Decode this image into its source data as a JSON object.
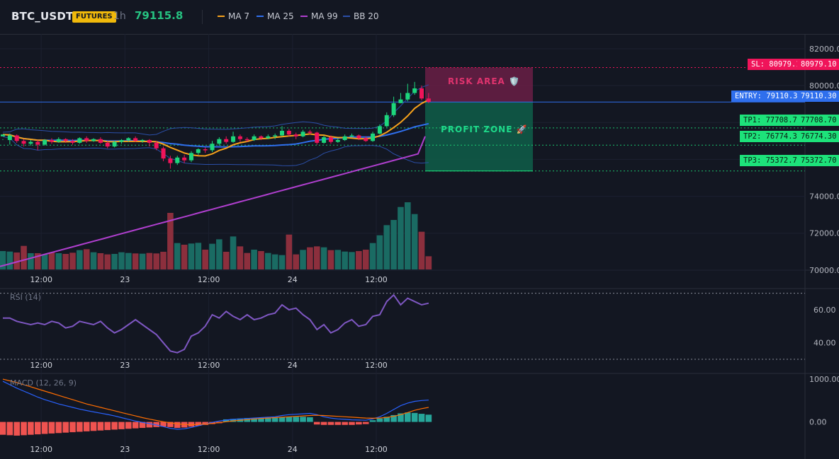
{
  "header": {
    "symbol": "BTC_USDT",
    "badge": "FUTURES",
    "interval": "1h",
    "last_price": "79115.8",
    "indicators": [
      {
        "label": "MA 7",
        "color": "#f7a21b"
      },
      {
        "label": "MA 25",
        "color": "#2f6fed"
      },
      {
        "label": "MA 99",
        "color": "#b03fcf"
      },
      {
        "label": "BB 20",
        "color": "#2b4fa8"
      }
    ]
  },
  "levels": {
    "sl": {
      "tag": "SL: 80979.1",
      "axis": "80979.10",
      "value": 80979.1,
      "color": "#f0145a"
    },
    "entry": {
      "tag": "ENTRY: 79110.3",
      "axis": "79110.30",
      "value": 79110.3,
      "color": "#2f6fed"
    },
    "tps": [
      {
        "tag": "TP1: 77708.7",
        "axis": "77708.70",
        "value": 77708.7,
        "color": "#1de27a"
      },
      {
        "tag": "TP2: 76774.3",
        "axis": "76774.30",
        "value": 76774.3,
        "color": "#1de27a"
      },
      {
        "tag": "TP3: 75372.7",
        "axis": "75372.70",
        "value": 75372.7,
        "color": "#1de27a"
      }
    ]
  },
  "zones": {
    "risk_label": "RISK AREA 🛡️",
    "profit_label": "PROFIT ZONE 🚀"
  },
  "panes": {
    "rsi_label": "RSI (14)",
    "macd_label": "MACD (12, 26, 9)"
  },
  "chart_data": {
    "type": "candlestick",
    "price_axis": {
      "range": [
        69000,
        82800
      ],
      "ticks": [
        "82000.00",
        "80000.00",
        "78000.00",
        "76000.00",
        "74000.00",
        "72000.00",
        "70000.00"
      ],
      "tick_values": [
        82000,
        80000,
        78000,
        76000,
        74000,
        72000,
        70000
      ]
    },
    "x_ticks": [
      {
        "label": "12:00",
        "index": 5.5
      },
      {
        "label": "23",
        "index": 17.5
      },
      {
        "label": "12:00",
        "index": 29.5
      },
      {
        "label": "24",
        "index": 41.5
      },
      {
        "label": "12:00",
        "index": 53.5
      }
    ],
    "candles": [
      [
        77250,
        77350,
        77100,
        77050
      ],
      [
        77050,
        77300,
        77400,
        76800
      ],
      [
        77300,
        77000,
        77350,
        76900
      ],
      [
        77000,
        76850,
        77100,
        76700
      ],
      [
        76850,
        76950,
        77050,
        76750
      ],
      [
        76950,
        76800,
        77050,
        76500
      ],
      [
        76800,
        77050,
        77100,
        76750
      ],
      [
        77050,
        76950,
        77150,
        76850
      ],
      [
        76950,
        77100,
        77200,
        76900
      ],
      [
        77100,
        77000,
        77150,
        76900
      ],
      [
        77000,
        76900,
        77100,
        76800
      ],
      [
        76900,
        77150,
        77200,
        76850
      ],
      [
        77150,
        77000,
        77250,
        76900
      ],
      [
        77000,
        77100,
        77150,
        76950
      ],
      [
        77100,
        76900,
        77200,
        76850
      ],
      [
        76900,
        76700,
        77000,
        76600
      ],
      [
        76700,
        76950,
        77000,
        76650
      ],
      [
        76950,
        77050,
        77100,
        76850
      ],
      [
        77050,
        77150,
        77200,
        76950
      ],
      [
        77150,
        77000,
        77250,
        76950
      ],
      [
        77000,
        77050,
        77100,
        76900
      ],
      [
        77050,
        76900,
        77100,
        76700
      ],
      [
        76900,
        76600,
        77000,
        76500
      ],
      [
        76600,
        76050,
        76700,
        75900
      ],
      [
        76050,
        75800,
        76200,
        75500
      ],
      [
        75800,
        76100,
        76200,
        75700
      ],
      [
        76100,
        75950,
        76250,
        75800
      ],
      [
        75950,
        76350,
        76450,
        75850
      ],
      [
        76350,
        76550,
        76600,
        76250
      ],
      [
        76550,
        76500,
        76650,
        76350
      ],
      [
        76500,
        76850,
        77000,
        76400
      ],
      [
        76850,
        77100,
        77200,
        76750
      ],
      [
        77100,
        76950,
        77250,
        76850
      ],
      [
        76950,
        77250,
        77500,
        76900
      ],
      [
        77250,
        77100,
        77350,
        76950
      ],
      [
        77100,
        77050,
        77200,
        76950
      ],
      [
        77050,
        77250,
        77350,
        77000
      ],
      [
        77250,
        77150,
        77300,
        77050
      ],
      [
        77150,
        77250,
        77350,
        77100
      ],
      [
        77250,
        77300,
        77400,
        77100
      ],
      [
        77300,
        77550,
        77800,
        77250
      ],
      [
        77550,
        77350,
        77650,
        77250
      ],
      [
        77350,
        77250,
        77450,
        77100
      ],
      [
        77250,
        77500,
        77600,
        77200
      ],
      [
        77500,
        77450,
        77600,
        77350
      ],
      [
        77450,
        76900,
        77500,
        76800
      ],
      [
        76900,
        77200,
        77300,
        76850
      ],
      [
        77200,
        76950,
        77300,
        76850
      ],
      [
        76950,
        77050,
        77150,
        76900
      ],
      [
        77050,
        77250,
        77350,
        77000
      ],
      [
        77250,
        77300,
        77400,
        77200
      ],
      [
        77300,
        77150,
        77350,
        77050
      ],
      [
        77150,
        77000,
        77250,
        76950
      ],
      [
        77000,
        77400,
        77500,
        76950
      ],
      [
        77400,
        77800,
        77900,
        77350
      ],
      [
        77800,
        78400,
        78550,
        77750
      ],
      [
        78400,
        79050,
        79400,
        78300
      ],
      [
        79050,
        79250,
        79600,
        79050
      ],
      [
        79250,
        79600,
        80100,
        79150
      ],
      [
        79600,
        79850,
        80200,
        79500
      ],
      [
        79850,
        79300,
        80000,
        79200
      ],
      [
        79300,
        79116,
        79600,
        79050
      ]
    ],
    "volume_axis_max": 3000,
    "volume": [
      780,
      760,
      720,
      1000,
      690,
      690,
      640,
      720,
      690,
      660,
      710,
      820,
      860,
      730,
      690,
      640,
      660,
      730,
      700,
      680,
      670,
      700,
      680,
      750,
      2400,
      1120,
      1050,
      1100,
      1130,
      840,
      1090,
      1280,
      750,
      1400,
      980,
      700,
      840,
      780,
      700,
      640,
      610,
      1480,
      640,
      830,
      940,
      980,
      940,
      820,
      830,
      760,
      740,
      780,
      840,
      1120,
      1450,
      1880,
      2100,
      2650,
      2850,
      2350,
      1600,
      560
    ],
    "rsi": {
      "range": [
        30,
        72
      ],
      "levels": [
        70,
        30
      ],
      "ticks": [
        "60.00",
        "40.00"
      ],
      "tick_values": [
        60,
        40
      ],
      "values": [
        55,
        55,
        53,
        52,
        51,
        52,
        51,
        53,
        52,
        49,
        50,
        53,
        52,
        51,
        53,
        49,
        46,
        48,
        51,
        54,
        51,
        48,
        45,
        40,
        35,
        34,
        36,
        44,
        46,
        50,
        57,
        55,
        59,
        56,
        54,
        57,
        54,
        55,
        57,
        58,
        63,
        60,
        61,
        57,
        54,
        48,
        51,
        46,
        48,
        52,
        54,
        50,
        51,
        56,
        57,
        65,
        69,
        63,
        67,
        65,
        63,
        64
      ]
    },
    "macd": {
      "range": [
        -420,
        1100
      ],
      "ticks": [
        "1000.00",
        "0.00"
      ],
      "tick_values": [
        1000,
        0
      ],
      "macd_values": [
        950,
        870,
        790,
        720,
        650,
        580,
        520,
        470,
        420,
        380,
        340,
        300,
        265,
        235,
        205,
        175,
        140,
        100,
        60,
        20,
        -10,
        -40,
        -70,
        -110,
        -150,
        -170,
        -160,
        -130,
        -90,
        -50,
        -10,
        20,
        45,
        60,
        70,
        80,
        90,
        100,
        110,
        120,
        150,
        170,
        180,
        190,
        200,
        170,
        120,
        90,
        70,
        60,
        50,
        45,
        40,
        70,
        120,
        200,
        290,
        380,
        440,
        480,
        500,
        510
      ],
      "signal_values": [
        1000,
        960,
        920,
        870,
        820,
        770,
        720,
        670,
        620,
        570,
        520,
        470,
        420,
        380,
        340,
        300,
        260,
        220,
        180,
        140,
        100,
        65,
        35,
        5,
        -20,
        -45,
        -60,
        -65,
        -60,
        -50,
        -35,
        -15,
        5,
        25,
        40,
        55,
        70,
        80,
        90,
        100,
        110,
        120,
        130,
        140,
        150,
        155,
        150,
        140,
        130,
        120,
        110,
        100,
        90,
        85,
        90,
        105,
        130,
        170,
        220,
        270,
        310,
        340
      ],
      "hist_values": [
        -300,
        -310,
        -320,
        -310,
        -300,
        -290,
        -280,
        -270,
        -260,
        -250,
        -240,
        -230,
        -220,
        -210,
        -200,
        -190,
        -180,
        -170,
        -160,
        -150,
        -140,
        -130,
        -120,
        -110,
        -120,
        -140,
        -130,
        -110,
        -90,
        -70,
        -50,
        -30,
        60,
        70,
        80,
        90,
        90,
        100,
        100,
        110,
        110,
        120,
        120,
        120,
        110,
        -60,
        -70,
        -70,
        -70,
        -70,
        -70,
        -60,
        -50,
        40,
        80,
        120,
        160,
        200,
        220,
        210,
        190,
        170
      ]
    }
  }
}
